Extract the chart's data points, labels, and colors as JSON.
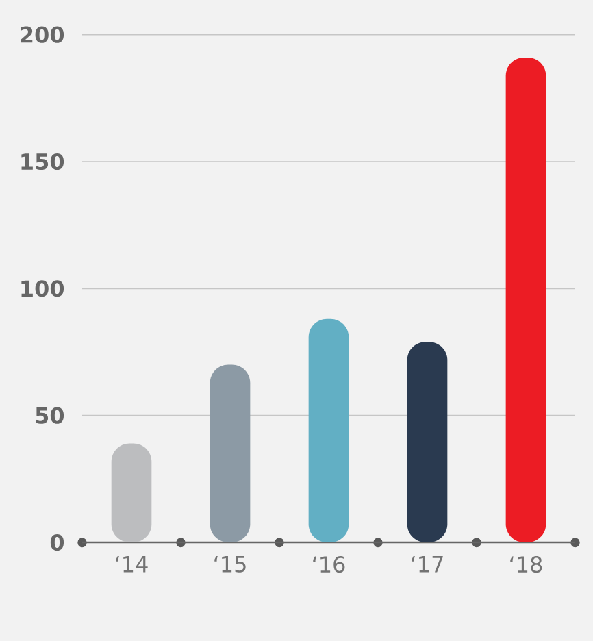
{
  "chart_data": {
    "type": "bar",
    "categories": [
      "‘14",
      "‘15",
      "‘16",
      "‘17",
      "‘18"
    ],
    "values": [
      39,
      70,
      88,
      79,
      191
    ],
    "colors": [
      "#bcbdbf",
      "#8c9aa5",
      "#62afc4",
      "#2a3a50",
      "#ec1c24"
    ],
    "ylim": [
      0,
      200
    ],
    "yticks": [
      0,
      50,
      100,
      150,
      200
    ],
    "grid": "y"
  }
}
